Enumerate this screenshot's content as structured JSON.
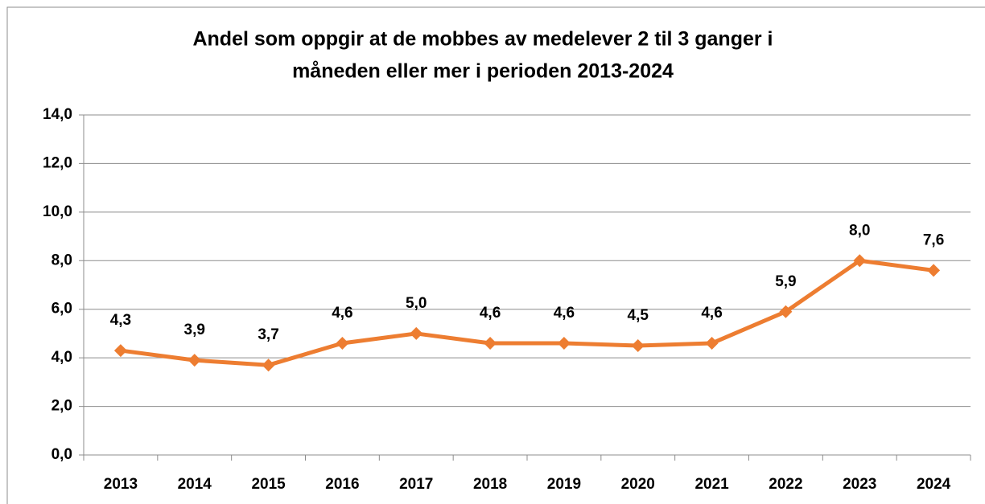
{
  "chart_data": {
    "type": "line",
    "title": [
      "Andel som oppgir at de mobbes av medelever 2 til 3 ganger i",
      "måneden eller mer i perioden 2013-2024"
    ],
    "categories": [
      "2013",
      "2014",
      "2015",
      "2016",
      "2017",
      "2018",
      "2019",
      "2020",
      "2021",
      "2022",
      "2023",
      "2024"
    ],
    "series": [
      {
        "color": "#ed7d31",
        "values": [
          4.3,
          3.9,
          3.7,
          4.6,
          5.0,
          4.6,
          4.6,
          4.5,
          4.6,
          5.9,
          8.0,
          7.6
        ],
        "value_labels": [
          "4,3",
          "3,9",
          "3,7",
          "4,6",
          "5,0",
          "4,6",
          "4,6",
          "4,5",
          "4,6",
          "5,9",
          "8,0",
          "7,6"
        ]
      }
    ],
    "ylim": [
      0,
      14
    ],
    "yticks": [
      {
        "value": 0,
        "label": "0,0"
      },
      {
        "value": 2,
        "label": "2,0"
      },
      {
        "value": 4,
        "label": "4,0"
      },
      {
        "value": 6,
        "label": "6,0"
      },
      {
        "value": 8,
        "label": "8,0"
      },
      {
        "value": 10,
        "label": "10,0"
      },
      {
        "value": 12,
        "label": "12,0"
      },
      {
        "value": 14,
        "label": "14,0"
      }
    ],
    "grid": true
  }
}
